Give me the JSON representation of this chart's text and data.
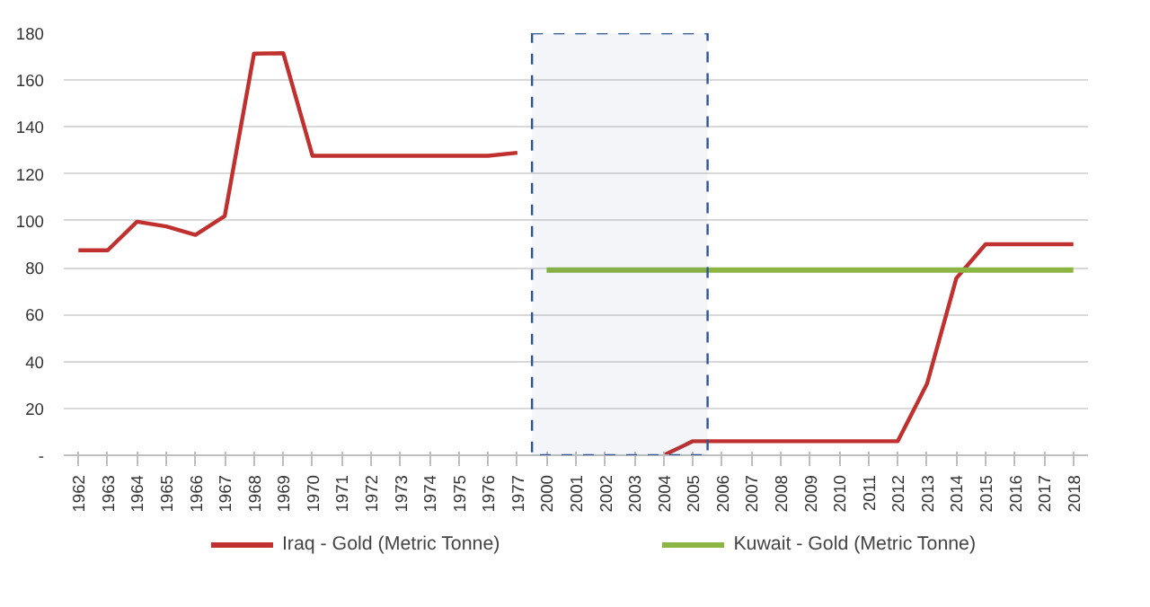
{
  "chart_data": {
    "type": "line",
    "categories": [
      "1962",
      "1963",
      "1964",
      "1965",
      "1966",
      "1967",
      "1968",
      "1969",
      "1970",
      "1971",
      "1972",
      "1973",
      "1974",
      "1975",
      "1976",
      "1977",
      "2000",
      "2001",
      "2002",
      "2003",
      "2004",
      "2005",
      "2006",
      "2007",
      "2008",
      "2009",
      "2010",
      "2011",
      "2012",
      "2013",
      "2014",
      "2015",
      "2016",
      "2017",
      "2018"
    ],
    "series": [
      {
        "name": "Iraq - Gold (Metric Tonne)",
        "color": "#c0302f",
        "values": [
          87.4,
          87.4,
          99.6,
          97.6,
          94,
          102,
          171.3,
          171.5,
          127.7,
          127.7,
          127.7,
          127.7,
          127.7,
          127.7,
          127.7,
          129,
          null,
          null,
          null,
          null,
          0,
          6,
          6,
          6,
          6,
          6,
          6,
          6,
          6,
          30.5,
          75.5,
          90,
          90,
          90,
          90
        ]
      },
      {
        "name": "Kuwait - Gold (Metric Tonne)",
        "color": "#8cb543",
        "values": [
          null,
          null,
          null,
          null,
          null,
          null,
          null,
          null,
          null,
          null,
          null,
          null,
          null,
          null,
          null,
          null,
          79,
          79,
          79,
          79,
          79,
          79,
          79,
          79,
          79,
          79,
          79,
          79,
          79,
          79,
          79,
          79,
          79,
          79,
          79
        ]
      }
    ],
    "ylim": [
      0,
      180
    ],
    "yticks": [
      {
        "value": 0,
        "label": "-"
      },
      20,
      40,
      60,
      80,
      100,
      120,
      140,
      160,
      180
    ],
    "bands": [
      {
        "axis": "x",
        "from": "2000",
        "to": "2005",
        "color": "#2e5597"
      }
    ],
    "grid": "y",
    "legend": "bottom",
    "marker": "none",
    "line_style": "solid"
  }
}
